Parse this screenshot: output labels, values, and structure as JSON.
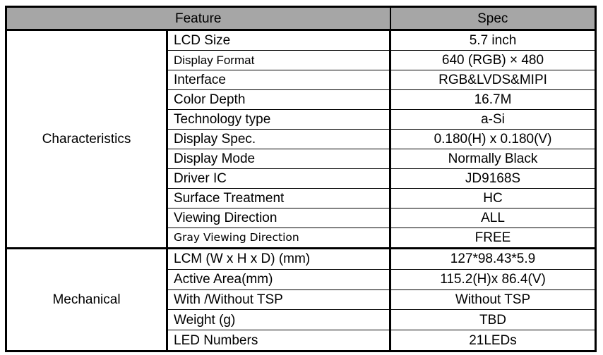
{
  "header": {
    "feature": "Feature",
    "spec": "Spec"
  },
  "groups": [
    {
      "name": "Characteristics",
      "rows": [
        {
          "feature": "LCD Size",
          "spec": "5.7 inch"
        },
        {
          "feature": "Display Format",
          "spec": "640 (RGB) × 480"
        },
        {
          "feature": "Interface",
          "spec": "RGB&LVDS&MIPI"
        },
        {
          "feature": "Color Depth",
          "spec": "16.7M"
        },
        {
          "feature": "Technology type",
          "spec": "a-Si"
        },
        {
          "feature": "Display Spec.",
          "spec": "0.180(H) x 0.180(V)"
        },
        {
          "feature": "Display Mode",
          "spec": "Normally Black"
        },
        {
          "feature": "Driver IC",
          "spec": "JD9168S"
        },
        {
          "feature": "Surface Treatment",
          "spec": "HC"
        },
        {
          "feature": "Viewing Direction",
          "spec": "ALL"
        },
        {
          "feature": "Gray Viewing Direction",
          "spec": "FREE"
        }
      ]
    },
    {
      "name": "Mechanical",
      "rows": [
        {
          "feature": "LCM (W x H x D) (mm)",
          "spec": "127*98.43*5.9"
        },
        {
          "feature": "Active Area(mm)",
          "spec": "115.2(H)x 86.4(V)"
        },
        {
          "feature": "With /Without TSP",
          "spec": "Without TSP"
        },
        {
          "feature": "Weight (g)",
          "spec": "TBD"
        },
        {
          "feature": "LED Numbers",
          "spec": "21LEDs"
        }
      ]
    }
  ]
}
